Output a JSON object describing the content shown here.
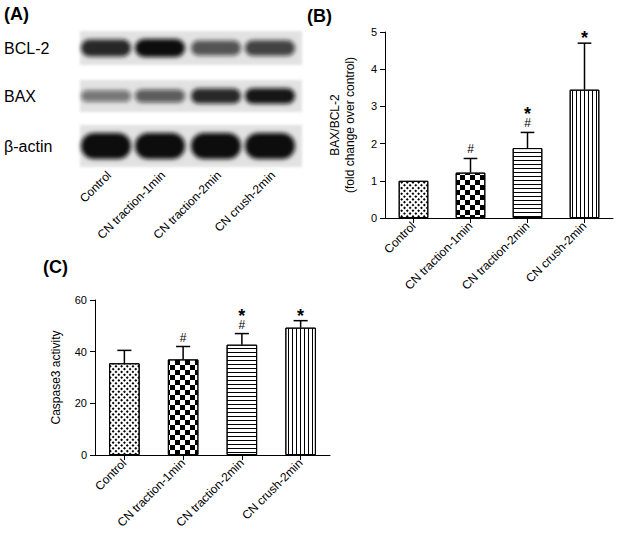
{
  "blot": {
    "title": "(A)",
    "rows": [
      "BCL-2",
      "BAX",
      "β-actin"
    ],
    "lanes": [
      "Control",
      "CN traction-1min",
      "CN traction-2min",
      "CN crush-2min"
    ],
    "band_intensity": [
      [
        0.85,
        1.0,
        0.6,
        0.7
      ],
      [
        0.4,
        0.55,
        0.85,
        0.95
      ],
      [
        1.0,
        1.0,
        1.0,
        1.0
      ]
    ]
  },
  "chart_data": [
    {
      "type": "bar",
      "title": "(B)",
      "categories": [
        "Control",
        "CN traction-1min",
        "CN traction-2min",
        "CN crush-2min"
      ],
      "values": [
        1,
        1.22,
        1.88,
        3.45
      ],
      "errors": [
        0,
        0.38,
        0.42,
        1.25
      ],
      "annotations": [
        [],
        [
          "#"
        ],
        [
          "*",
          "#"
        ],
        [
          "*"
        ]
      ],
      "y_label": [
        "BAX/BCL-2",
        "(fold change over control)"
      ],
      "ylim": [
        0,
        5
      ],
      "yticks": [
        0,
        1,
        2,
        3,
        4,
        5
      ],
      "grid": false
    },
    {
      "type": "bar",
      "title": "(C)",
      "categories": [
        "Control",
        "CN traction-1min",
        "CN traction-2min",
        "CN crush-2min"
      ],
      "values": [
        35.5,
        37,
        42.7,
        49.3
      ],
      "errors": [
        5,
        5,
        4.3,
        2.7
      ],
      "annotations": [
        [],
        [
          "#"
        ],
        [
          "*",
          "#"
        ],
        [
          "*"
        ]
      ],
      "y_label": [
        "Caspase3 activity"
      ],
      "ylim": [
        0,
        60
      ],
      "yticks": [
        0,
        20,
        40,
        60
      ],
      "grid": false
    }
  ]
}
